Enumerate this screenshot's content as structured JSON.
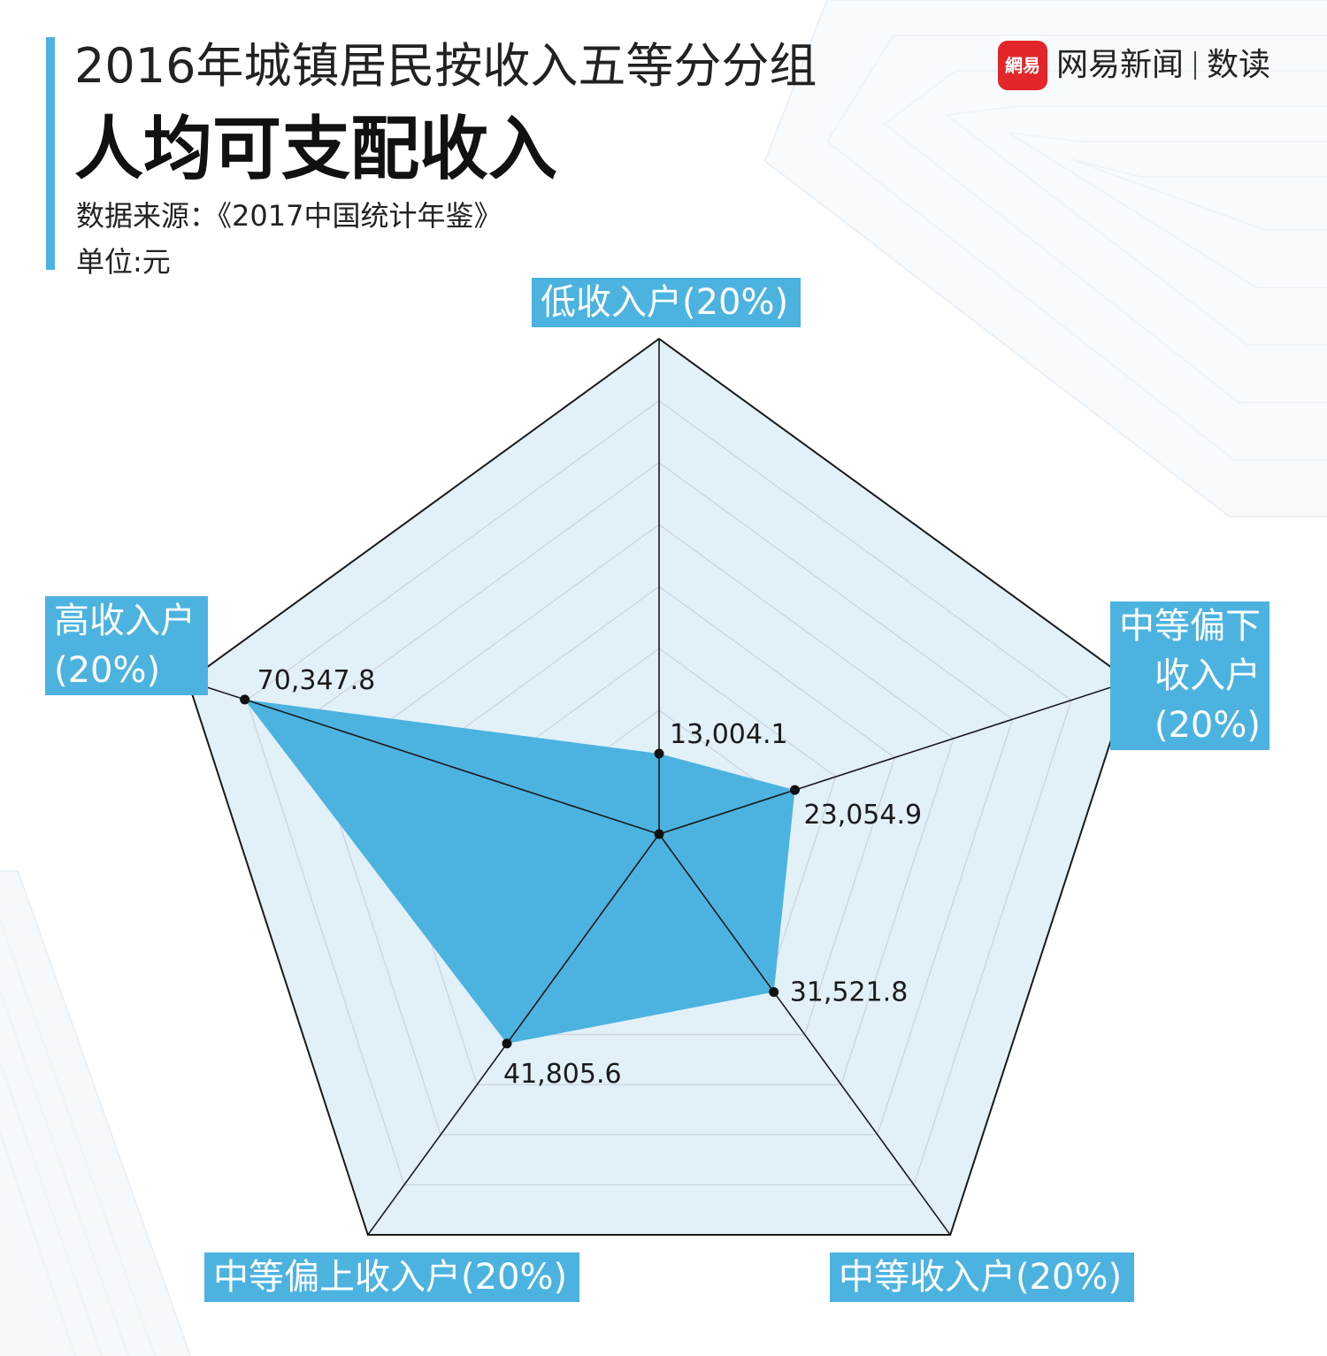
{
  "header": {
    "title_line1": "2016年城镇居民按收入五等分分组",
    "title_line2": "人均可支配收入",
    "source": "数据来源：《2017中国统计年鉴》",
    "unit": "单位:元"
  },
  "brand": {
    "logo_text": "網易",
    "name": "网易新闻",
    "section": "数读"
  },
  "colors": {
    "accent": "#4cb3e0",
    "radar_fill": "#e2f0f8",
    "data_fill": "#4cb3e0",
    "logo_red": "#e2262a"
  },
  "chart_data": {
    "type": "radar",
    "title": "2016年城镇居民按收入五等分分组人均可支配收入",
    "unit": "元",
    "axes": [
      "低收入户(20%)",
      "中等偏下收入户(20%)",
      "中等收入户(20%)",
      "中等偏上收入户(20%)",
      "高收入户(20%)"
    ],
    "axis_label_lines": [
      [
        "低收入户(20%)"
      ],
      [
        "中等偏下",
        "收入户",
        "(20%)"
      ],
      [
        "中等收入户(20%)"
      ],
      [
        "中等偏上收入户(20%)"
      ],
      [
        "高收入户",
        "(20%)"
      ]
    ],
    "values": [
      13004.1,
      23054.9,
      31521.8,
      41805.6,
      70347.8
    ],
    "value_labels": [
      "13,004.1",
      "23,054.9",
      "31,521.8",
      "41,805.6",
      "70,347.8"
    ],
    "range": [
      0,
      80000
    ],
    "grid_rings": 8
  }
}
